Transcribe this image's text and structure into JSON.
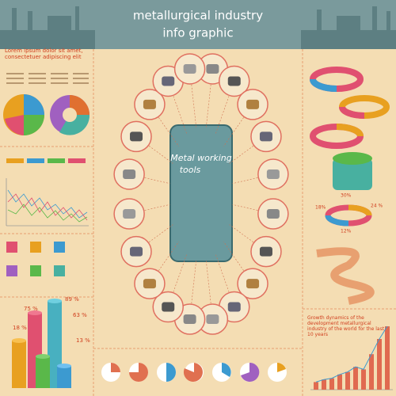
{
  "header": {
    "title": "metallurgical industry",
    "subtitle": "info graphic"
  },
  "left_panel": {
    "heading": "Lorem ipsum dolor sit amet, consectetuer adipiscing elit"
  },
  "center": {
    "label_1": "Metal working",
    "label_2": "tools"
  },
  "cylinders": {
    "labels": [
      "75 %",
      "89 %",
      "63 %",
      "18 %",
      "13 %"
    ]
  },
  "ring_pie": {
    "labels": [
      "30%",
      "18%",
      "24 %",
      "12%"
    ]
  },
  "growth_chart": {
    "caption": "Growth dynamics of the development metallurgical industry of the world for the last 10 years",
    "values": [
      6,
      8,
      9,
      12,
      14,
      18,
      16,
      28,
      40,
      50
    ]
  }
}
